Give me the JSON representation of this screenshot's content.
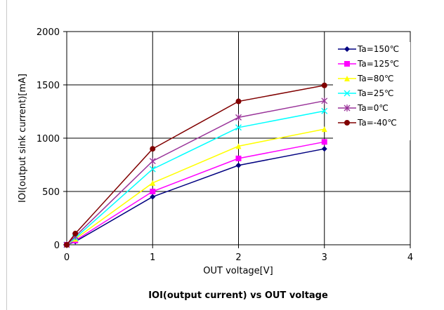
{
  "chart_data": {
    "type": "line",
    "title": "IOI(output current) vs OUT voltage",
    "xlabel": "OUT voltage[V]",
    "ylabel": "IOI(output sink current)[mA]",
    "xlim": [
      0,
      4
    ],
    "ylim": [
      0,
      2000
    ],
    "xticks": [
      0,
      1,
      2,
      3,
      4
    ],
    "yticks": [
      0,
      500,
      1000,
      1500,
      2000
    ],
    "grid": true,
    "legend_position": "top-right",
    "x": [
      0,
      0.1,
      1,
      2,
      3
    ],
    "series": [
      {
        "name": "Ta=150℃",
        "color": "#000080",
        "marker": "diamond",
        "values": [
          0,
          30,
          450,
          745,
          900
        ]
      },
      {
        "name": "Ta=125℃",
        "color": "#ff00ff",
        "marker": "square",
        "values": [
          0,
          40,
          500,
          810,
          965
        ]
      },
      {
        "name": "Ta=80℃",
        "color": "#ffff00",
        "marker": "triangle",
        "values": [
          0,
          55,
          580,
          925,
          1085
        ]
      },
      {
        "name": "Ta=25℃",
        "color": "#00ffff",
        "marker": "x",
        "values": [
          0,
          65,
          710,
          1100,
          1255
        ]
      },
      {
        "name": "Ta=0℃",
        "color": "#993399",
        "marker": "star",
        "values": [
          0,
          80,
          785,
          1195,
          1350
        ]
      },
      {
        "name": "Ta=-40℃",
        "color": "#800000",
        "marker": "circle",
        "values": [
          0,
          105,
          900,
          1345,
          1495
        ]
      }
    ]
  }
}
